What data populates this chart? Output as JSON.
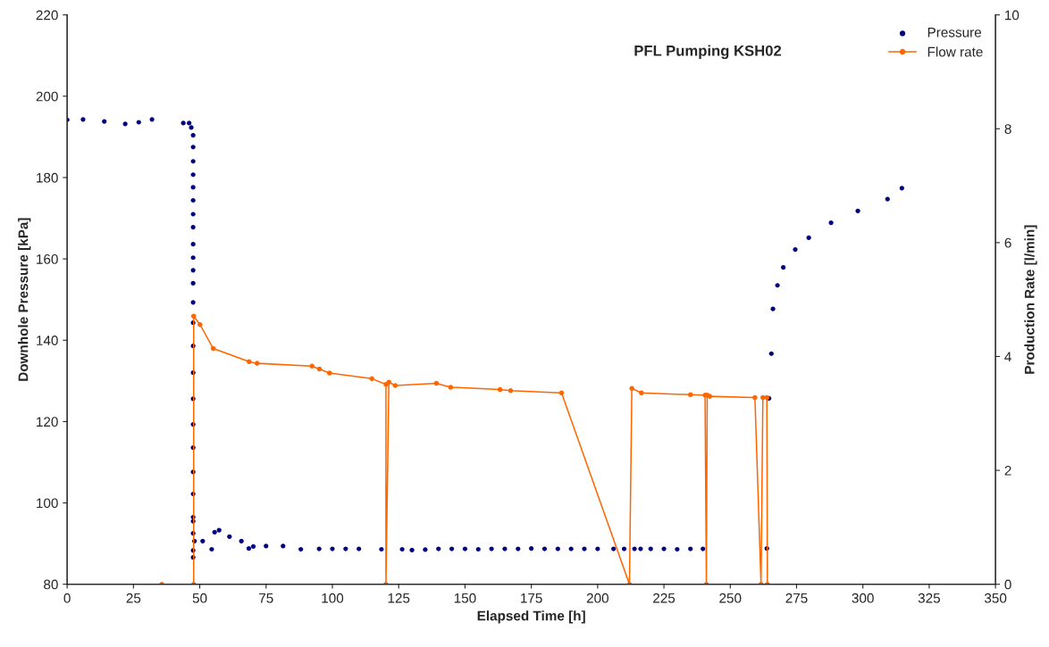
{
  "chart_data": {
    "type": "scatter",
    "title": "PFL Pumping KSH02",
    "xlabel": "Elapsed Time [h]",
    "ylabel": "Downhole Pressure [kPa]",
    "y2label": "Production Rate [l/min]",
    "xlim": [
      0,
      350
    ],
    "xticks": [
      0,
      25,
      50,
      75,
      100,
      125,
      150,
      175,
      200,
      225,
      250,
      275,
      300,
      325,
      350
    ],
    "ylim": [
      80,
      220
    ],
    "yticks": [
      80,
      100,
      120,
      140,
      160,
      180,
      200,
      220
    ],
    "y2lim": [
      0,
      10
    ],
    "y2ticks": [
      0,
      2,
      4,
      6,
      8,
      10
    ],
    "grid": false,
    "legend": "top right",
    "series": [
      {
        "name": "Pressure",
        "marker": "circle",
        "color": "#000080",
        "x": [
          0,
          6,
          14,
          21.9,
          27,
          32,
          43.8,
          46,
          46.8,
          47.5,
          47.5,
          47.5,
          47.5,
          47.5,
          47.5,
          47.5,
          47.5,
          47.5,
          47.5,
          47.5,
          47.5,
          47.5,
          47.5,
          47.5,
          47.5,
          47.5,
          47.5,
          47.5,
          47.5,
          47.5,
          47.5,
          47.5,
          47.5,
          47.5,
          47.5,
          48,
          51.1,
          54.5,
          55.6,
          57.3,
          61.2,
          65.7,
          68.5,
          70.2,
          75,
          81.4,
          88.1,
          95,
          100,
          105,
          110,
          118.5,
          126.3,
          130,
          135,
          140,
          145,
          150,
          155,
          160,
          165,
          170,
          175,
          180,
          185,
          190,
          195,
          200,
          206,
          210,
          213.9,
          216.2,
          220,
          225,
          230,
          235,
          239.7,
          263.8,
          264.6,
          265.5,
          266.1,
          267.8,
          270,
          274.5,
          279.6,
          288,
          298.1,
          309.3,
          314.7
        ],
        "values": [
          194.2,
          194.3,
          193.8,
          193.2,
          193.6,
          194.3,
          193.4,
          193.4,
          192.3,
          190.4,
          187.5,
          184,
          180.7,
          177.6,
          174.4,
          171,
          167.8,
          163.6,
          160.3,
          157.2,
          154,
          149.3,
          144.3,
          138.6,
          132,
          125.6,
          119.3,
          113.6,
          107.6,
          102.2,
          96.5,
          95.5,
          92.5,
          88.3,
          86.6,
          90.6,
          90.6,
          88.6,
          92.8,
          93.3,
          91.7,
          90.6,
          88.8,
          89.3,
          89.4,
          89.4,
          88.6,
          88.7,
          88.7,
          88.7,
          88.7,
          88.6,
          88.6,
          88.4,
          88.5,
          88.7,
          88.7,
          88.7,
          88.6,
          88.7,
          88.7,
          88.7,
          88.8,
          88.7,
          88.7,
          88.7,
          88.7,
          88.7,
          88.7,
          88.7,
          88.7,
          88.7,
          88.7,
          88.7,
          88.6,
          88.7,
          88.7,
          88.8,
          125.7,
          136.7,
          147.7,
          153.5,
          157.9,
          162.3,
          165.2,
          168.9,
          171.8,
          174.7,
          177.4
        ]
      },
      {
        "name": "Flow rate",
        "type": "line",
        "axis": "y2",
        "marker": "circle",
        "color": "#ff6600",
        "x": [
          35.7,
          47.7,
          47.7,
          50.1,
          55.1,
          68.6,
          71.6,
          92.3,
          95.1,
          98.9,
          114.9,
          120.2,
          120.2,
          121.3,
          123.7,
          139.2,
          144.6,
          163.2,
          167.2,
          186.4,
          212.0,
          212.9,
          216.5,
          235.0,
          240.5,
          241.0,
          241.3,
          242.3,
          259.3,
          261.6,
          262.3,
          263.8,
          264.0
        ],
        "values": [
          0,
          0,
          4.71,
          4.56,
          4.14,
          3.91,
          3.88,
          3.83,
          3.78,
          3.71,
          3.61,
          3.51,
          0,
          3.55,
          3.49,
          3.53,
          3.46,
          3.42,
          3.4,
          3.36,
          0,
          3.44,
          3.36,
          3.33,
          3.32,
          0,
          3.32,
          3.3,
          3.28,
          0,
          3.28,
          3.28,
          0
        ]
      }
    ]
  }
}
